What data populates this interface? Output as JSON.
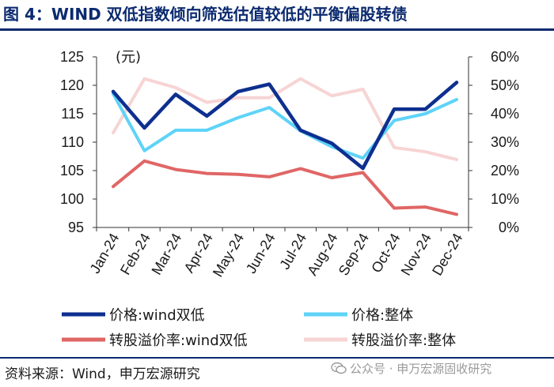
{
  "figure": {
    "title": "图 4：WIND 双低指数倾向筛选估值较低的平衡偏股转债",
    "source": "资料来源：Wind，申万宏源研究",
    "watermark": "公众号 · 申万宏源固收研究"
  },
  "chart_data": {
    "type": "line",
    "categories": [
      "Jan-24",
      "Feb-24",
      "Mar-24",
      "Apr-24",
      "May-24",
      "Jun-24",
      "Jul-24",
      "Aug-24",
      "Sep-24",
      "Oct-24",
      "Nov-24",
      "Dec-24"
    ],
    "left_axis": {
      "unit_label": "(元)",
      "ylim": [
        95,
        125
      ],
      "ticks": [
        95,
        100,
        105,
        110,
        115,
        120,
        125
      ]
    },
    "right_axis": {
      "ylim": [
        0,
        60
      ],
      "ticks": [
        0,
        10,
        20,
        30,
        40,
        50,
        60
      ],
      "tick_suffix": "%"
    },
    "grid": false,
    "legend_position": "bottom",
    "series": [
      {
        "name": "价格:wind双低",
        "axis": "left",
        "color": "#0d2f8f",
        "values": [
          118.9,
          112.5,
          118.4,
          114.6,
          118.9,
          120.2,
          112.1,
          109.8,
          105.4,
          115.8,
          115.8,
          120.5
        ]
      },
      {
        "name": "价格:整体",
        "axis": "left",
        "color": "#5fd3f8",
        "values": [
          118.5,
          108.5,
          112.1,
          112.1,
          114.3,
          116.1,
          112.0,
          109.2,
          107.2,
          113.8,
          115.0,
          117.5
        ]
      },
      {
        "name": "转股溢价率:wind双低",
        "axis": "right",
        "color": "#e06666",
        "values": [
          14.4,
          23.4,
          20.4,
          19.0,
          18.7,
          17.8,
          20.7,
          17.5,
          19.3,
          6.8,
          7.2,
          4.6
        ]
      },
      {
        "name": "转股溢价率:整体",
        "axis": "right",
        "color": "#f7d4d4",
        "values": [
          33.3,
          52.3,
          49.2,
          44.0,
          45.6,
          45.6,
          52.3,
          46.3,
          48.6,
          28.1,
          26.6,
          23.9
        ]
      }
    ]
  }
}
